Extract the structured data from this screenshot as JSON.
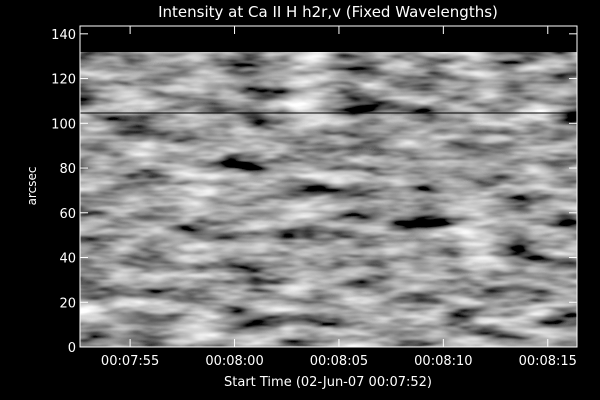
{
  "chart_data": {
    "type": "image",
    "title": "Intensity at Ca II H h2r,v (Fixed Wavelengths)",
    "x_label": "Start Time (02-Jun-07 00:07:52)",
    "y_label": "arcsec",
    "xlim": [
      0.6,
      24.4
    ],
    "xticks": [
      {
        "value": 3,
        "label": "00:07:55"
      },
      {
        "value": 8,
        "label": "00:08:00"
      },
      {
        "value": 13,
        "label": "00:08:05"
      },
      {
        "value": 18,
        "label": "00:08:10"
      },
      {
        "value": 23,
        "label": "00:08:15"
      }
    ],
    "ylim": [
      0,
      143.5
    ],
    "yticks": [
      0,
      20,
      40,
      60,
      80,
      100,
      120,
      140
    ],
    "colormap": "gray"
  }
}
